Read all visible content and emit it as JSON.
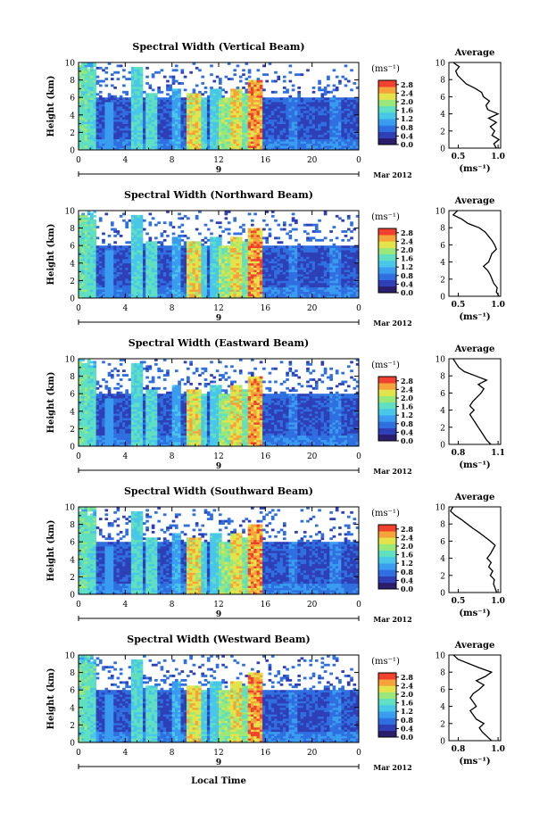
{
  "colors": {
    "colormap": [
      "#2b1d6b",
      "#2f3fb7",
      "#2f6fe0",
      "#3a9cf0",
      "#48c7e8",
      "#5fe0c0",
      "#9ae87a",
      "#e3e34a",
      "#f6a43a",
      "#f2402e"
    ],
    "gap": "#ffffff",
    "axis": "#000000"
  },
  "chart_data": {
    "type": "heatmap",
    "date_label": "Mar 2012",
    "day_label": "9",
    "xlabel": "Local Time",
    "ylabel": "Height (km)",
    "unit_label": "(ms⁻¹)",
    "x_ticks": [
      "0",
      "4",
      "8",
      "12",
      "16",
      "20",
      "0"
    ],
    "y_ticks": [
      "0",
      "2",
      "4",
      "6",
      "8",
      "10"
    ],
    "ylim": [
      0,
      10
    ],
    "xlim": [
      0,
      24
    ],
    "colorbar": {
      "ticks": [
        "0.0",
        "0.4",
        "0.8",
        "1.2",
        "1.6",
        "2.0",
        "2.4",
        "2.8"
      ],
      "range": [
        0,
        3.0
      ]
    },
    "profile_title": "Average",
    "profile_xlabel": "(ms⁻¹)",
    "panels": [
      {
        "title": "Spectral Width (Vertical Beam)",
        "profile_ticks": [
          "0.5",
          "1.0"
        ],
        "profile_xlim": [
          0.4,
          1.0
        ],
        "profile": [
          [
            0.0,
            0.95
          ],
          [
            0.5,
            0.92
          ],
          [
            1.0,
            0.98
          ],
          [
            1.5,
            0.9
          ],
          [
            2.0,
            0.93
          ],
          [
            2.5,
            0.88
          ],
          [
            3.0,
            0.95
          ],
          [
            3.5,
            0.86
          ],
          [
            4.0,
            0.97
          ],
          [
            4.5,
            0.85
          ],
          [
            5.0,
            0.83
          ],
          [
            5.5,
            0.87
          ],
          [
            6.0,
            0.8
          ],
          [
            6.5,
            0.78
          ],
          [
            7.0,
            0.7
          ],
          [
            7.5,
            0.6
          ],
          [
            8.0,
            0.55
          ],
          [
            8.5,
            0.5
          ],
          [
            9.0,
            0.48
          ],
          [
            9.5,
            0.52
          ],
          [
            10.0,
            0.45
          ]
        ]
      },
      {
        "title": "Spectral Width (Northward Beam)",
        "profile_ticks": [
          "0.5",
          "1.0"
        ],
        "profile_xlim": [
          0.4,
          1.0
        ],
        "profile": [
          [
            0.0,
            0.98
          ],
          [
            0.5,
            0.95
          ],
          [
            1.0,
            0.96
          ],
          [
            1.5,
            0.92
          ],
          [
            2.0,
            0.9
          ],
          [
            2.5,
            0.88
          ],
          [
            3.0,
            0.85
          ],
          [
            3.5,
            0.8
          ],
          [
            4.0,
            0.86
          ],
          [
            4.5,
            0.88
          ],
          [
            5.0,
            0.9
          ],
          [
            5.5,
            0.95
          ],
          [
            6.0,
            0.93
          ],
          [
            6.5,
            0.9
          ],
          [
            7.0,
            0.86
          ],
          [
            7.5,
            0.82
          ],
          [
            8.0,
            0.75
          ],
          [
            8.5,
            0.62
          ],
          [
            9.0,
            0.55
          ],
          [
            9.5,
            0.45
          ],
          [
            10.0,
            0.5
          ]
        ]
      },
      {
        "title": "Spectral Width (Eastward Beam)",
        "profile_ticks": [
          "0.8",
          "1.1"
        ],
        "profile_xlim": [
          0.75,
          1.12
        ],
        "profile": [
          [
            0.0,
            1.05
          ],
          [
            0.5,
            1.02
          ],
          [
            1.0,
            1.0
          ],
          [
            1.5,
            0.98
          ],
          [
            2.0,
            0.96
          ],
          [
            2.5,
            0.94
          ],
          [
            3.0,
            0.92
          ],
          [
            3.5,
            0.9
          ],
          [
            4.0,
            0.93
          ],
          [
            4.5,
            0.9
          ],
          [
            5.0,
            0.92
          ],
          [
            5.5,
            0.95
          ],
          [
            6.0,
            0.98
          ],
          [
            6.5,
            1.0
          ],
          [
            7.0,
            0.96
          ],
          [
            7.5,
            1.02
          ],
          [
            8.0,
            0.94
          ],
          [
            8.5,
            0.86
          ],
          [
            9.0,
            0.82
          ],
          [
            9.5,
            0.8
          ],
          [
            10.0,
            0.78
          ]
        ]
      },
      {
        "title": "Spectral Width (Southward Beam)",
        "profile_ticks": [
          "0.5",
          "1.0"
        ],
        "profile_xlim": [
          0.4,
          1.05
        ],
        "profile": [
          [
            0.0,
            1.0
          ],
          [
            0.5,
            0.98
          ],
          [
            1.0,
            0.96
          ],
          [
            1.5,
            0.97
          ],
          [
            2.0,
            0.92
          ],
          [
            2.5,
            0.95
          ],
          [
            3.0,
            0.9
          ],
          [
            3.5,
            0.93
          ],
          [
            4.0,
            0.88
          ],
          [
            4.5,
            0.92
          ],
          [
            5.0,
            0.95
          ],
          [
            5.5,
            0.98
          ],
          [
            6.0,
            0.92
          ],
          [
            6.5,
            0.85
          ],
          [
            7.0,
            0.78
          ],
          [
            7.5,
            0.7
          ],
          [
            8.0,
            0.63
          ],
          [
            8.5,
            0.56
          ],
          [
            9.0,
            0.48
          ],
          [
            9.5,
            0.42
          ],
          [
            10.0,
            0.45
          ]
        ]
      },
      {
        "title": "Spectral Width (Westward Beam)",
        "profile_ticks": [
          "0.8",
          "1.0"
        ],
        "profile_xlim": [
          0.72,
          1.06
        ],
        "profile": [
          [
            0.0,
            1.0
          ],
          [
            0.5,
            0.97
          ],
          [
            1.0,
            0.94
          ],
          [
            1.5,
            0.92
          ],
          [
            2.0,
            0.95
          ],
          [
            2.5,
            0.9
          ],
          [
            3.0,
            0.88
          ],
          [
            3.5,
            0.86
          ],
          [
            4.0,
            0.9
          ],
          [
            4.5,
            0.88
          ],
          [
            5.0,
            0.86
          ],
          [
            5.5,
            0.88
          ],
          [
            6.0,
            0.92
          ],
          [
            6.5,
            0.95
          ],
          [
            7.0,
            0.9
          ],
          [
            7.5,
            0.96
          ],
          [
            8.0,
            1.0
          ],
          [
            8.5,
            0.92
          ],
          [
            9.0,
            0.85
          ],
          [
            9.5,
            0.78
          ],
          [
            10.0,
            0.75
          ]
        ]
      }
    ],
    "events": [
      {
        "t": 0.3,
        "w": 0.5,
        "top": 9.5,
        "v": 1.9
      },
      {
        "t": 1.0,
        "w": 0.4,
        "top": 9.0,
        "v": 1.8
      },
      {
        "t": 2.6,
        "w": 0.4,
        "top": 5.5,
        "v": 1.2
      },
      {
        "t": 5.0,
        "w": 0.5,
        "top": 9.5,
        "v": 1.7
      },
      {
        "t": 6.3,
        "w": 0.5,
        "top": 6.5,
        "v": 1.8
      },
      {
        "t": 8.3,
        "w": 0.4,
        "top": 7.0,
        "v": 1.3
      },
      {
        "t": 9.8,
        "w": 0.6,
        "top": 6.5,
        "v": 2.6
      },
      {
        "t": 10.6,
        "w": 0.4,
        "top": 6.0,
        "v": 1.6
      },
      {
        "t": 11.7,
        "w": 0.5,
        "top": 7.0,
        "v": 1.6
      },
      {
        "t": 12.6,
        "w": 0.5,
        "top": 6.0,
        "v": 2.2
      },
      {
        "t": 13.5,
        "w": 0.5,
        "top": 7.0,
        "v": 2.6
      },
      {
        "t": 14.3,
        "w": 0.4,
        "top": 6.5,
        "v": 2.0
      },
      {
        "t": 15.2,
        "w": 0.6,
        "top": 8.0,
        "v": 2.9
      },
      {
        "t": 18.3,
        "w": 0.4,
        "top": 6.0,
        "v": 1.0
      },
      {
        "t": 22.0,
        "w": 0.4,
        "top": 6.0,
        "v": 1.0
      }
    ]
  }
}
